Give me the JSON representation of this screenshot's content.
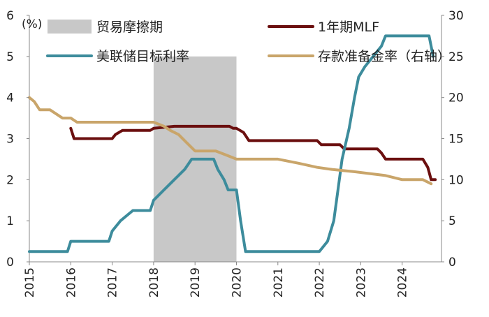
{
  "chart_data": {
    "type": "line",
    "y_unit_label": "(%)",
    "x_ticks": [
      "2015",
      "2016",
      "2017",
      "2018",
      "2019",
      "2020",
      "2021",
      "2022",
      "2023",
      "2024"
    ],
    "xlim": [
      2015.0,
      2024.95
    ],
    "y_left": {
      "ylim": [
        0,
        6
      ],
      "ticks": [
        0,
        1,
        2,
        3,
        4,
        5,
        6
      ]
    },
    "y_right": {
      "ylim": [
        0,
        30
      ],
      "ticks": [
        0,
        5,
        10,
        15,
        20,
        25,
        30
      ]
    },
    "shaded_region": {
      "name": "贸易摩擦期",
      "x_start": 2018.0,
      "x_end": 2020.0,
      "color": "#c8c8c8"
    },
    "series": [
      {
        "name": "1年期MLF",
        "axis": "left",
        "color": "#6b0f0f",
        "points": [
          [
            2016.0,
            3.25
          ],
          [
            2016.08,
            3.0
          ],
          [
            2016.5,
            3.0
          ],
          [
            2017.0,
            3.0
          ],
          [
            2017.08,
            3.1
          ],
          [
            2017.25,
            3.2
          ],
          [
            2017.5,
            3.2
          ],
          [
            2017.92,
            3.2
          ],
          [
            2018.0,
            3.25
          ],
          [
            2018.5,
            3.3
          ],
          [
            2019.0,
            3.3
          ],
          [
            2019.5,
            3.3
          ],
          [
            2019.83,
            3.3
          ],
          [
            2019.92,
            3.25
          ],
          [
            2020.0,
            3.25
          ],
          [
            2020.17,
            3.15
          ],
          [
            2020.3,
            2.95
          ],
          [
            2020.5,
            2.95
          ],
          [
            2021.0,
            2.95
          ],
          [
            2021.5,
            2.95
          ],
          [
            2021.95,
            2.95
          ],
          [
            2022.05,
            2.85
          ],
          [
            2022.5,
            2.85
          ],
          [
            2022.6,
            2.75
          ],
          [
            2023.0,
            2.75
          ],
          [
            2023.4,
            2.75
          ],
          [
            2023.5,
            2.65
          ],
          [
            2023.6,
            2.5
          ],
          [
            2024.0,
            2.5
          ],
          [
            2024.5,
            2.5
          ],
          [
            2024.62,
            2.3
          ],
          [
            2024.7,
            2.0
          ],
          [
            2024.8,
            2.0
          ]
        ]
      },
      {
        "name": "美联储目标利率",
        "axis": "left",
        "color": "#3d8c9c",
        "points": [
          [
            2015.0,
            0.25
          ],
          [
            2015.5,
            0.25
          ],
          [
            2015.92,
            0.25
          ],
          [
            2016.0,
            0.5
          ],
          [
            2016.5,
            0.5
          ],
          [
            2016.92,
            0.5
          ],
          [
            2017.0,
            0.75
          ],
          [
            2017.2,
            1.0
          ],
          [
            2017.5,
            1.25
          ],
          [
            2017.92,
            1.25
          ],
          [
            2018.0,
            1.5
          ],
          [
            2018.25,
            1.75
          ],
          [
            2018.5,
            2.0
          ],
          [
            2018.75,
            2.25
          ],
          [
            2018.92,
            2.5
          ],
          [
            2019.0,
            2.5
          ],
          [
            2019.45,
            2.5
          ],
          [
            2019.55,
            2.25
          ],
          [
            2019.7,
            2.0
          ],
          [
            2019.8,
            1.75
          ],
          [
            2020.0,
            1.75
          ],
          [
            2020.1,
            1.0
          ],
          [
            2020.22,
            0.25
          ],
          [
            2020.5,
            0.25
          ],
          [
            2021.0,
            0.25
          ],
          [
            2021.5,
            0.25
          ],
          [
            2022.0,
            0.25
          ],
          [
            2022.2,
            0.5
          ],
          [
            2022.35,
            1.0
          ],
          [
            2022.45,
            1.75
          ],
          [
            2022.55,
            2.5
          ],
          [
            2022.72,
            3.25
          ],
          [
            2022.85,
            4.0
          ],
          [
            2022.95,
            4.5
          ],
          [
            2023.1,
            4.75
          ],
          [
            2023.3,
            5.0
          ],
          [
            2023.5,
            5.25
          ],
          [
            2023.6,
            5.5
          ],
          [
            2024.0,
            5.5
          ],
          [
            2024.5,
            5.5
          ],
          [
            2024.65,
            5.5
          ],
          [
            2024.75,
            5.0
          ]
        ]
      },
      {
        "name": "存款准备金率（右轴）",
        "axis": "right",
        "color": "#c9a56a",
        "points": [
          [
            2015.0,
            20.0
          ],
          [
            2015.12,
            19.5
          ],
          [
            2015.25,
            18.5
          ],
          [
            2015.5,
            18.5
          ],
          [
            2015.65,
            18.0
          ],
          [
            2015.8,
            17.5
          ],
          [
            2016.0,
            17.5
          ],
          [
            2016.15,
            17.0
          ],
          [
            2016.5,
            17.0
          ],
          [
            2017.0,
            17.0
          ],
          [
            2017.5,
            17.0
          ],
          [
            2018.0,
            17.0
          ],
          [
            2018.25,
            16.5
          ],
          [
            2018.4,
            16.0
          ],
          [
            2018.6,
            15.5
          ],
          [
            2018.8,
            14.5
          ],
          [
            2019.0,
            13.5
          ],
          [
            2019.5,
            13.5
          ],
          [
            2019.75,
            13.0
          ],
          [
            2020.0,
            12.5
          ],
          [
            2020.3,
            12.5
          ],
          [
            2020.6,
            12.5
          ],
          [
            2021.0,
            12.5
          ],
          [
            2021.5,
            12.0
          ],
          [
            2021.95,
            11.5
          ],
          [
            2022.3,
            11.25
          ],
          [
            2022.8,
            11.0
          ],
          [
            2023.2,
            10.75
          ],
          [
            2023.6,
            10.5
          ],
          [
            2024.0,
            10.0
          ],
          [
            2024.5,
            10.0
          ],
          [
            2024.7,
            9.5
          ]
        ]
      }
    ],
    "legend": [
      {
        "label": "贸易摩擦期",
        "kind": "patch"
      },
      {
        "label": "1年期MLF",
        "kind": "line"
      },
      {
        "label": "美联储目标利率",
        "kind": "line"
      },
      {
        "label": "存款准备金率（右轴）",
        "kind": "line"
      }
    ],
    "legend_placement": "top",
    "grid": false
  }
}
